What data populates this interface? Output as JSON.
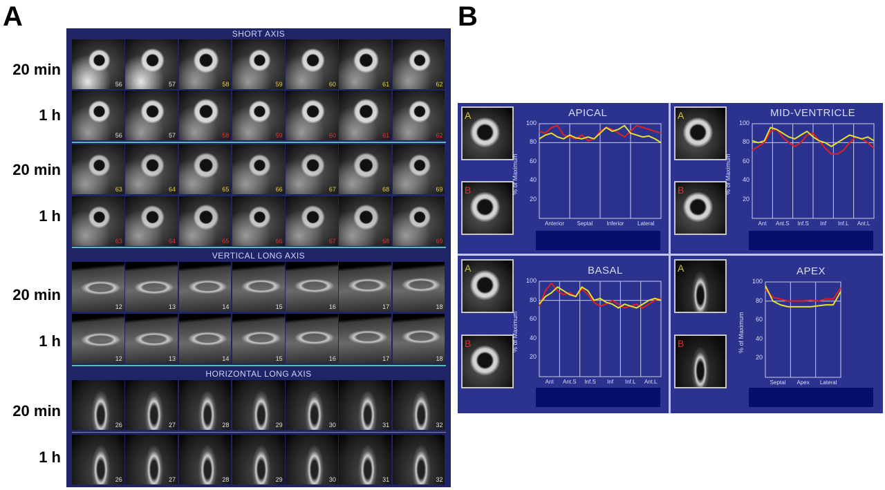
{
  "panel_a": {
    "letter": "A",
    "sections": {
      "short_axis": "SHORT AXIS",
      "vertical_long_axis": "VERTICAL LONG AXIS",
      "horizontal_long_axis": "HORIZONTAL LONG AXIS"
    },
    "row_labels": [
      "20 min",
      "1 h",
      "20 min",
      "1 h",
      "20 min",
      "1 h",
      "20 min",
      "1 h"
    ],
    "rows": [
      {
        "nums": [
          "56",
          "57",
          "58",
          "59",
          "60",
          "61",
          "62"
        ],
        "colors": [
          "w",
          "w",
          "y",
          "y",
          "y",
          "y",
          "y"
        ]
      },
      {
        "nums": [
          "56",
          "57",
          "58",
          "59",
          "60",
          "61",
          "62"
        ],
        "colors": [
          "w",
          "w",
          "r",
          "r",
          "r",
          "r",
          "r"
        ]
      },
      {
        "nums": [
          "63",
          "64",
          "65",
          "66",
          "67",
          "68",
          "69"
        ],
        "colors": [
          "y",
          "y",
          "y",
          "y",
          "y",
          "y",
          "y"
        ]
      },
      {
        "nums": [
          "63",
          "64",
          "65",
          "66",
          "67",
          "68",
          "69"
        ],
        "colors": [
          "r",
          "r",
          "r",
          "r",
          "r",
          "r",
          "r"
        ]
      },
      {
        "nums": [
          "12",
          "13",
          "14",
          "15",
          "16",
          "17",
          "18"
        ],
        "colors": [
          "w",
          "w",
          "w",
          "w",
          "w",
          "w",
          "w"
        ]
      },
      {
        "nums": [
          "12",
          "13",
          "14",
          "15",
          "16",
          "17",
          "18"
        ],
        "colors": [
          "w",
          "w",
          "w",
          "w",
          "w",
          "w",
          "w"
        ]
      },
      {
        "nums": [
          "26",
          "27",
          "28",
          "29",
          "30",
          "31",
          "32"
        ],
        "colors": [
          "w",
          "w",
          "w",
          "w",
          "w",
          "w",
          "w"
        ]
      },
      {
        "nums": [
          "26",
          "27",
          "28",
          "29",
          "30",
          "31",
          "32"
        ],
        "colors": [
          "w",
          "w",
          "w",
          "w",
          "w",
          "w",
          "w"
        ]
      }
    ]
  },
  "panel_b": {
    "letter": "B",
    "thumb_labels": {
      "a": "A",
      "b": "B"
    },
    "ylabel": "% of Maximum",
    "yticks": [
      "100",
      "80",
      "60",
      "40",
      "20"
    ],
    "colors": {
      "series_a": "#e8e030",
      "series_b": "#e02020",
      "grid": "#c8cce8"
    },
    "charts": [
      {
        "title": "APICAL",
        "xticks": [
          "Anterior",
          "Septal",
          "Inferior",
          "Lateral"
        ]
      },
      {
        "title": "MID-VENTRICLE",
        "xticks": [
          "Ant",
          "Ant.S",
          "Inf.S",
          "Inf",
          "Inf.L",
          "Ant.L"
        ]
      },
      {
        "title": "BASAL",
        "xticks": [
          "Ant",
          "Ant.S",
          "Inf.S",
          "Inf",
          "Inf.L",
          "Ant.L"
        ]
      },
      {
        "title": "APEX",
        "xticks": [
          "Septal",
          "Apex",
          "Lateral"
        ]
      }
    ]
  },
  "chart_data": [
    {
      "type": "line",
      "title": "APICAL",
      "ylabel": "% of Maximum",
      "ylim": [
        0,
        100
      ],
      "categories": [
        "Anterior",
        "Septal",
        "Inferior",
        "Lateral"
      ],
      "x": [
        0,
        1,
        2,
        3,
        4,
        5,
        6,
        7,
        8,
        9,
        10,
        11,
        12,
        13,
        14,
        15,
        16,
        17,
        18,
        19,
        20
      ],
      "series": [
        {
          "name": "A",
          "values": [
            84,
            88,
            90,
            86,
            84,
            88,
            85,
            84,
            86,
            84,
            90,
            96,
            92,
            94,
            98,
            90,
            88,
            86,
            87,
            84,
            80
          ]
        },
        {
          "name": "B",
          "values": [
            92,
            90,
            96,
            98,
            88,
            86,
            84,
            88,
            82,
            84,
            92,
            96,
            94,
            90,
            86,
            92,
            98,
            96,
            94,
            92,
            90
          ]
        }
      ]
    },
    {
      "type": "line",
      "title": "MID-VENTRICLE",
      "ylabel": "% of Maximum",
      "ylim": [
        0,
        100
      ],
      "categories": [
        "Ant",
        "Ant.S",
        "Inf.S",
        "Inf",
        "Inf.L",
        "Ant.L"
      ],
      "x": [
        0,
        1,
        2,
        3,
        4,
        5,
        6,
        7,
        8,
        9,
        10,
        11,
        12,
        13,
        14,
        15,
        16,
        17,
        18,
        19,
        20
      ],
      "series": [
        {
          "name": "A",
          "values": [
            82,
            80,
            82,
            96,
            94,
            90,
            86,
            84,
            88,
            92,
            86,
            82,
            80,
            76,
            80,
            84,
            88,
            86,
            84,
            86,
            82
          ]
        },
        {
          "name": "B",
          "values": [
            72,
            76,
            80,
            92,
            94,
            86,
            80,
            76,
            80,
            88,
            90,
            82,
            74,
            68,
            68,
            72,
            80,
            86,
            84,
            80,
            74
          ]
        }
      ]
    },
    {
      "type": "line",
      "title": "BASAL",
      "ylabel": "% of Maximum",
      "ylim": [
        0,
        100
      ],
      "categories": [
        "Ant",
        "Ant.S",
        "Inf.S",
        "Inf",
        "Inf.L",
        "Ant.L"
      ],
      "x": [
        0,
        1,
        2,
        3,
        4,
        5,
        6,
        7,
        8,
        9,
        10,
        11,
        12,
        13,
        14,
        15,
        16,
        17,
        18,
        19,
        20
      ],
      "series": [
        {
          "name": "A",
          "values": [
            76,
            84,
            88,
            94,
            90,
            86,
            84,
            94,
            90,
            80,
            82,
            78,
            76,
            72,
            76,
            74,
            72,
            76,
            80,
            82,
            80
          ]
        },
        {
          "name": "B",
          "values": [
            74,
            90,
            98,
            90,
            86,
            88,
            84,
            92,
            86,
            78,
            74,
            76,
            80,
            76,
            72,
            74,
            76,
            72,
            76,
            80,
            82
          ]
        }
      ]
    },
    {
      "type": "line",
      "title": "APEX",
      "ylabel": "% of Maximum",
      "ylim": [
        0,
        100
      ],
      "categories": [
        "Septal",
        "Apex",
        "Lateral"
      ],
      "x": [
        0,
        1,
        2,
        3,
        4,
        5,
        6,
        7,
        8,
        9,
        10
      ],
      "series": [
        {
          "name": "A",
          "values": [
            96,
            80,
            76,
            74,
            74,
            74,
            74,
            75,
            76,
            76,
            90
          ]
        },
        {
          "name": "B",
          "values": [
            92,
            84,
            82,
            80,
            80,
            80,
            81,
            80,
            82,
            82,
            94
          ]
        }
      ]
    }
  ]
}
